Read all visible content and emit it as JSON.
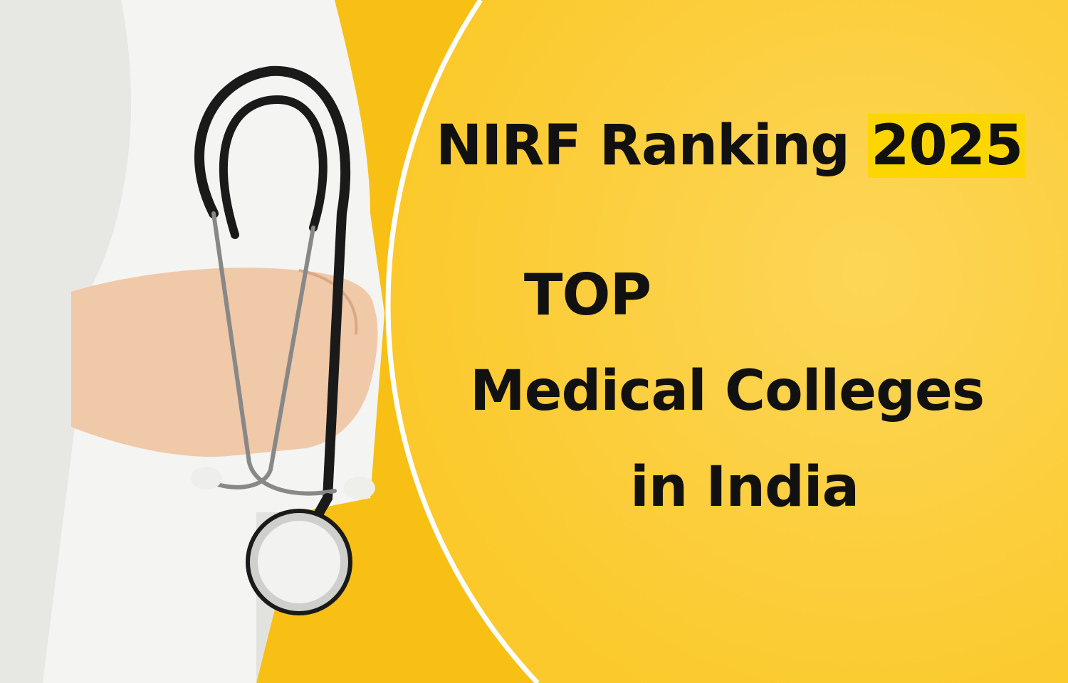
{
  "headline": {
    "prefix": "NIRF Ranking",
    "year": "2025"
  },
  "top_label": "TOP",
  "subtitle_line1": "Medical Colleges",
  "subtitle_line2": "in India",
  "colors": {
    "background": "#f7be12",
    "circle": "#fcd03e",
    "highlight": "#fdd600",
    "text": "#111111"
  }
}
